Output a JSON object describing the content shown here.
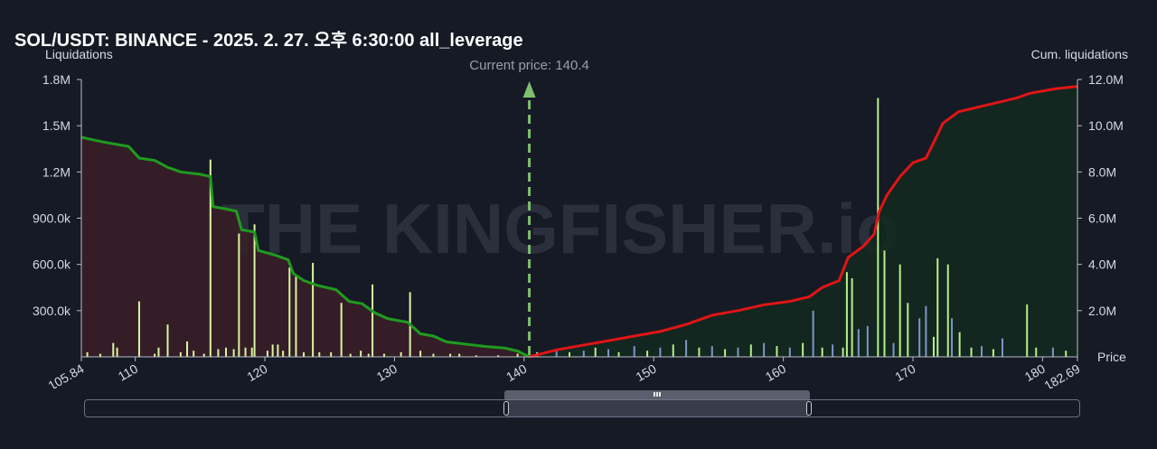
{
  "chart_data": {
    "type": "bar+line",
    "title": "SOL/USDT: BINANCE - 2025. 2. 27. 오후 6:30:00 all_leverage",
    "ylabel_left": "Liquidations",
    "ylabel_right": "Cum. liquidations",
    "xlabel": "Price",
    "xlim": [
      105.84,
      182.69
    ],
    "x_ticks": [
      "105.84",
      "110",
      "120",
      "130",
      "140",
      "150",
      "160",
      "170",
      "180",
      "182.69"
    ],
    "x_tick_values": [
      105.84,
      110,
      120,
      130,
      140,
      150,
      160,
      170,
      180,
      182.69
    ],
    "y_left_ticks": [
      "300.0k",
      "600.0k",
      "900.0k",
      "1.2M",
      "1.5M",
      "1.8M"
    ],
    "y_left_values": [
      300000,
      600000,
      900000,
      1200000,
      1500000,
      1800000
    ],
    "y_left_max": 1800000,
    "y_right_ticks": [
      "2.0M",
      "4.0M",
      "6.0M",
      "8.0M",
      "10.0M",
      "12.0M"
    ],
    "y_right_values": [
      2000000,
      4000000,
      6000000,
      8000000,
      10000000,
      12000000
    ],
    "y_right_max": 12000000,
    "current_price": 140.4,
    "current_price_label": "Current price: 140.4",
    "watermark": "THE KINGFISHER.io",
    "colors": {
      "long_bar": "#d9f5a0",
      "short_bar_a": "#b6f08a",
      "short_bar_b": "#7e96c8",
      "long_line": "#1f9b1f",
      "short_line": "#e01515",
      "long_fill": "#3a1f28",
      "short_fill": "#13291f",
      "price_marker": "#7fbf6e"
    },
    "long_bars": [
      {
        "x": 106.3,
        "y": 30000
      },
      {
        "x": 107.3,
        "y": 20000
      },
      {
        "x": 108.3,
        "y": 90000
      },
      {
        "x": 108.6,
        "y": 60000
      },
      {
        "x": 110.3,
        "y": 360000
      },
      {
        "x": 111.5,
        "y": 20000
      },
      {
        "x": 111.8,
        "y": 60000
      },
      {
        "x": 112.5,
        "y": 210000
      },
      {
        "x": 113.5,
        "y": 30000
      },
      {
        "x": 114.0,
        "y": 100000
      },
      {
        "x": 114.5,
        "y": 40000
      },
      {
        "x": 115.3,
        "y": 20000
      },
      {
        "x": 115.8,
        "y": 1280000
      },
      {
        "x": 116.4,
        "y": 50000
      },
      {
        "x": 117.0,
        "y": 60000
      },
      {
        "x": 117.6,
        "y": 50000
      },
      {
        "x": 118.0,
        "y": 800000
      },
      {
        "x": 118.5,
        "y": 60000
      },
      {
        "x": 119.0,
        "y": 60000
      },
      {
        "x": 119.2,
        "y": 860000
      },
      {
        "x": 120.2,
        "y": 40000
      },
      {
        "x": 120.6,
        "y": 80000
      },
      {
        "x": 121.0,
        "y": 80000
      },
      {
        "x": 121.4,
        "y": 40000
      },
      {
        "x": 121.9,
        "y": 580000
      },
      {
        "x": 122.4,
        "y": 520000
      },
      {
        "x": 123.0,
        "y": 30000
      },
      {
        "x": 123.7,
        "y": 610000
      },
      {
        "x": 124.2,
        "y": 30000
      },
      {
        "x": 125.1,
        "y": 30000
      },
      {
        "x": 125.9,
        "y": 350000
      },
      {
        "x": 126.6,
        "y": 20000
      },
      {
        "x": 127.4,
        "y": 40000
      },
      {
        "x": 128.0,
        "y": 20000
      },
      {
        "x": 128.3,
        "y": 470000
      },
      {
        "x": 129.2,
        "y": 20000
      },
      {
        "x": 130.5,
        "y": 30000
      },
      {
        "x": 131.2,
        "y": 420000
      },
      {
        "x": 132.0,
        "y": 40000
      },
      {
        "x": 133.0,
        "y": 20000
      },
      {
        "x": 134.3,
        "y": 20000
      },
      {
        "x": 135.0,
        "y": 20000
      },
      {
        "x": 136.3,
        "y": 10000
      },
      {
        "x": 138.0,
        "y": 10000
      },
      {
        "x": 139.5,
        "y": 20000
      }
    ],
    "long_cumulative": [
      {
        "x": 105.84,
        "y": 9500000
      },
      {
        "x": 107.5,
        "y": 9300000
      },
      {
        "x": 108.5,
        "y": 9200000
      },
      {
        "x": 109.5,
        "y": 9100000
      },
      {
        "x": 110.3,
        "y": 8600000
      },
      {
        "x": 111.5,
        "y": 8500000
      },
      {
        "x": 112.5,
        "y": 8200000
      },
      {
        "x": 113.5,
        "y": 8000000
      },
      {
        "x": 115.0,
        "y": 7900000
      },
      {
        "x": 115.8,
        "y": 7800000
      },
      {
        "x": 116.0,
        "y": 6500000
      },
      {
        "x": 117.0,
        "y": 6400000
      },
      {
        "x": 117.8,
        "y": 6300000
      },
      {
        "x": 118.2,
        "y": 5500000
      },
      {
        "x": 119.2,
        "y": 5400000
      },
      {
        "x": 119.5,
        "y": 4600000
      },
      {
        "x": 120.8,
        "y": 4400000
      },
      {
        "x": 121.8,
        "y": 4200000
      },
      {
        "x": 122.2,
        "y": 3600000
      },
      {
        "x": 123.0,
        "y": 3300000
      },
      {
        "x": 124.0,
        "y": 3100000
      },
      {
        "x": 125.5,
        "y": 2900000
      },
      {
        "x": 126.5,
        "y": 2400000
      },
      {
        "x": 127.5,
        "y": 2300000
      },
      {
        "x": 128.5,
        "y": 1900000
      },
      {
        "x": 129.5,
        "y": 1650000
      },
      {
        "x": 131.0,
        "y": 1500000
      },
      {
        "x": 132.0,
        "y": 1000000
      },
      {
        "x": 133.0,
        "y": 900000
      },
      {
        "x": 134.0,
        "y": 650000
      },
      {
        "x": 135.5,
        "y": 550000
      },
      {
        "x": 137.0,
        "y": 450000
      },
      {
        "x": 138.5,
        "y": 380000
      },
      {
        "x": 139.5,
        "y": 250000
      },
      {
        "x": 140.4,
        "y": 0
      }
    ],
    "short_bars": [
      {
        "x": 141.0,
        "y": 30000,
        "c": "a"
      },
      {
        "x": 142.5,
        "y": 50000,
        "c": "b"
      },
      {
        "x": 143.5,
        "y": 30000,
        "c": "a"
      },
      {
        "x": 144.6,
        "y": 40000,
        "c": "b"
      },
      {
        "x": 145.5,
        "y": 60000,
        "c": "a"
      },
      {
        "x": 146.5,
        "y": 50000,
        "c": "b"
      },
      {
        "x": 147.3,
        "y": 30000,
        "c": "a"
      },
      {
        "x": 148.5,
        "y": 70000,
        "c": "b"
      },
      {
        "x": 149.5,
        "y": 40000,
        "c": "a"
      },
      {
        "x": 150.5,
        "y": 60000,
        "c": "b"
      },
      {
        "x": 151.5,
        "y": 80000,
        "c": "a"
      },
      {
        "x": 152.5,
        "y": 110000,
        "c": "b"
      },
      {
        "x": 153.5,
        "y": 60000,
        "c": "a"
      },
      {
        "x": 154.5,
        "y": 70000,
        "c": "b"
      },
      {
        "x": 155.5,
        "y": 50000,
        "c": "a"
      },
      {
        "x": 156.5,
        "y": 60000,
        "c": "b"
      },
      {
        "x": 157.5,
        "y": 80000,
        "c": "a"
      },
      {
        "x": 158.5,
        "y": 90000,
        "c": "b"
      },
      {
        "x": 159.5,
        "y": 70000,
        "c": "a"
      },
      {
        "x": 160.5,
        "y": 60000,
        "c": "b"
      },
      {
        "x": 161.5,
        "y": 90000,
        "c": "a"
      },
      {
        "x": 162.3,
        "y": 300000,
        "c": "b"
      },
      {
        "x": 163.0,
        "y": 60000,
        "c": "a"
      },
      {
        "x": 163.8,
        "y": 80000,
        "c": "b"
      },
      {
        "x": 164.6,
        "y": 60000,
        "c": "a"
      },
      {
        "x": 164.9,
        "y": 550000,
        "c": "a"
      },
      {
        "x": 165.3,
        "y": 510000,
        "c": "a"
      },
      {
        "x": 165.8,
        "y": 180000,
        "c": "b"
      },
      {
        "x": 166.5,
        "y": 200000,
        "c": "b"
      },
      {
        "x": 167.3,
        "y": 1680000,
        "c": "a"
      },
      {
        "x": 167.8,
        "y": 690000,
        "c": "a"
      },
      {
        "x": 168.5,
        "y": 90000,
        "c": "b"
      },
      {
        "x": 169.0,
        "y": 600000,
        "c": "a"
      },
      {
        "x": 169.6,
        "y": 350000,
        "c": "a"
      },
      {
        "x": 170.5,
        "y": 250000,
        "c": "b"
      },
      {
        "x": 171.0,
        "y": 330000,
        "c": "b"
      },
      {
        "x": 171.6,
        "y": 130000,
        "c": "a"
      },
      {
        "x": 171.9,
        "y": 640000,
        "c": "a"
      },
      {
        "x": 172.7,
        "y": 600000,
        "c": "a"
      },
      {
        "x": 173.0,
        "y": 250000,
        "c": "b"
      },
      {
        "x": 173.6,
        "y": 160000,
        "c": "a"
      },
      {
        "x": 174.5,
        "y": 60000,
        "c": "a"
      },
      {
        "x": 175.3,
        "y": 70000,
        "c": "b"
      },
      {
        "x": 176.2,
        "y": 50000,
        "c": "a"
      },
      {
        "x": 176.9,
        "y": 120000,
        "c": "b"
      },
      {
        "x": 178.8,
        "y": 340000,
        "c": "a"
      },
      {
        "x": 179.5,
        "y": 60000,
        "c": "a"
      },
      {
        "x": 180.8,
        "y": 60000,
        "c": "b"
      },
      {
        "x": 181.8,
        "y": 40000,
        "c": "a"
      }
    ],
    "short_cumulative": [
      {
        "x": 140.4,
        "y": 0
      },
      {
        "x": 142.5,
        "y": 300000
      },
      {
        "x": 144.5,
        "y": 500000
      },
      {
        "x": 146.5,
        "y": 700000
      },
      {
        "x": 148.5,
        "y": 900000
      },
      {
        "x": 150.5,
        "y": 1100000
      },
      {
        "x": 152.5,
        "y": 1400000
      },
      {
        "x": 154.5,
        "y": 1800000
      },
      {
        "x": 156.5,
        "y": 2000000
      },
      {
        "x": 158.5,
        "y": 2250000
      },
      {
        "x": 160.5,
        "y": 2400000
      },
      {
        "x": 162.0,
        "y": 2600000
      },
      {
        "x": 163.0,
        "y": 3000000
      },
      {
        "x": 164.3,
        "y": 3300000
      },
      {
        "x": 165.0,
        "y": 4300000
      },
      {
        "x": 166.2,
        "y": 4800000
      },
      {
        "x": 167.0,
        "y": 5300000
      },
      {
        "x": 167.4,
        "y": 6300000
      },
      {
        "x": 168.0,
        "y": 7000000
      },
      {
        "x": 169.0,
        "y": 7800000
      },
      {
        "x": 170.0,
        "y": 8400000
      },
      {
        "x": 171.0,
        "y": 8600000
      },
      {
        "x": 171.8,
        "y": 9500000
      },
      {
        "x": 172.3,
        "y": 10100000
      },
      {
        "x": 173.5,
        "y": 10600000
      },
      {
        "x": 175.0,
        "y": 10800000
      },
      {
        "x": 176.5,
        "y": 11000000
      },
      {
        "x": 178.0,
        "y": 11200000
      },
      {
        "x": 179.0,
        "y": 11400000
      },
      {
        "x": 181.0,
        "y": 11600000
      },
      {
        "x": 182.69,
        "y": 11700000
      }
    ]
  }
}
